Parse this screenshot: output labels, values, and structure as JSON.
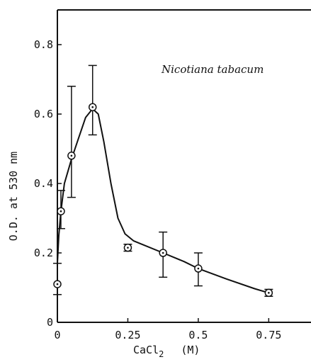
{
  "chart_data": {
    "type": "scatter",
    "title": "",
    "annotation": "Nicotiana tabacum",
    "xlabel": {
      "base": "CaCl",
      "sub": "2",
      "unit": "(M)"
    },
    "ylabel": "O.D. at 530 nm",
    "xlim": [
      0,
      0.9
    ],
    "ylim": [
      0,
      0.9
    ],
    "x_ticks": [
      0,
      0.25,
      0.5,
      0.75
    ],
    "x_tick_labels": [
      "0",
      "0.25",
      "0.5",
      "0.75"
    ],
    "y_ticks": [
      0,
      0.2,
      0.4,
      0.6,
      0.8
    ],
    "y_tick_labels": [
      "0",
      "0.2",
      "0.4",
      "0.6",
      "0.8"
    ],
    "grid": false,
    "series": [
      {
        "points": [
          {
            "x": 0,
            "y": 0.11,
            "err_low": 0.08,
            "err_high": 0.17
          },
          {
            "x": 0.0125,
            "y": 0.32,
            "err_low": 0.27,
            "err_high": 0.38
          },
          {
            "x": 0.05,
            "y": 0.48,
            "err_low": 0.36,
            "err_high": 0.68
          },
          {
            "x": 0.125,
            "y": 0.62,
            "err_low": 0.54,
            "err_high": 0.74
          },
          {
            "x": 0.25,
            "y": 0.215,
            "err_low": 0.205,
            "err_high": 0.225
          },
          {
            "x": 0.375,
            "y": 0.2,
            "err_low": 0.13,
            "err_high": 0.26
          },
          {
            "x": 0.5,
            "y": 0.155,
            "err_low": 0.105,
            "err_high": 0.2
          },
          {
            "x": 0.75,
            "y": 0.085,
            "err_low": 0.075,
            "err_high": 0.095
          }
        ],
        "fit_curve": [
          [
            0,
            0.17
          ],
          [
            0.005,
            0.25
          ],
          [
            0.0125,
            0.32
          ],
          [
            0.025,
            0.4
          ],
          [
            0.05,
            0.47
          ],
          [
            0.075,
            0.53
          ],
          [
            0.1,
            0.59
          ],
          [
            0.125,
            0.615
          ],
          [
            0.145,
            0.6
          ],
          [
            0.165,
            0.52
          ],
          [
            0.19,
            0.4
          ],
          [
            0.215,
            0.3
          ],
          [
            0.24,
            0.255
          ],
          [
            0.27,
            0.235
          ],
          [
            0.3,
            0.225
          ],
          [
            0.375,
            0.2
          ],
          [
            0.45,
            0.175
          ],
          [
            0.5,
            0.155
          ],
          [
            0.6,
            0.125
          ],
          [
            0.7,
            0.097
          ],
          [
            0.75,
            0.085
          ]
        ]
      }
    ]
  }
}
